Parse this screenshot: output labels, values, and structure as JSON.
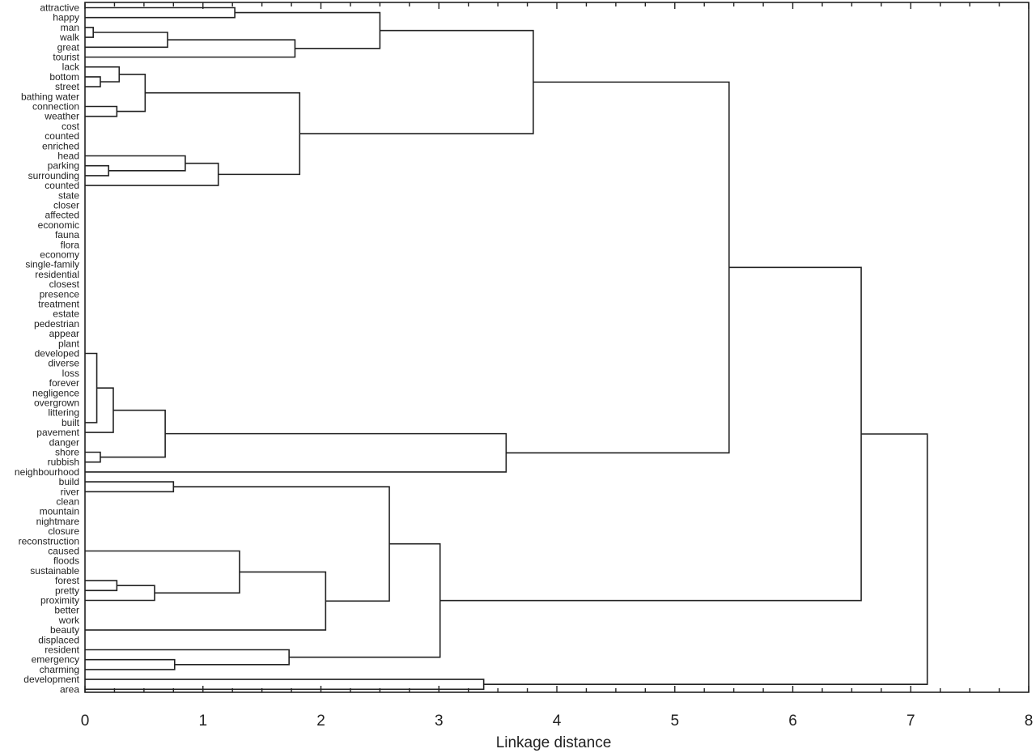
{
  "chart_data": {
    "type": "dendrogram",
    "xlabel": "Linkage distance",
    "xlim": [
      0,
      8
    ],
    "x_ticks": [
      0,
      1,
      2,
      3,
      4,
      5,
      6,
      7,
      8
    ],
    "leaves": [
      "attractive",
      "happy",
      "man",
      "walk",
      "great",
      "tourist",
      "lack",
      "bottom",
      "street",
      "bathing water",
      "connection",
      "weather",
      "cost",
      "counted",
      "enriched",
      "head",
      "parking",
      "surrounding",
      "counted",
      "state",
      "closer",
      "affected",
      "economic",
      "fauna",
      "flora",
      "economy",
      "single-family",
      "residential",
      "closest",
      "presence",
      "treatment",
      "estate",
      "pedestrian",
      "appear",
      "plant",
      "developed",
      "diverse",
      "loss",
      "forever",
      "negligence",
      "overgrown",
      "littering",
      "built",
      "pavement",
      "danger",
      "shore",
      "rubbish",
      "neighbourhood",
      "build",
      "river",
      "clean",
      "mountain",
      "nightmare",
      "closure",
      "reconstruction",
      "caused",
      "floods",
      "sustainable",
      "forest",
      "pretty",
      "proximity",
      "better",
      "work",
      "beauty",
      "displaced",
      "resident",
      "emergency",
      "charming",
      "development",
      "area"
    ],
    "links": [
      {
        "id": "A",
        "a": 0,
        "b": 1,
        "h": 1.27
      },
      {
        "id": "B",
        "a": 2,
        "b": 3,
        "h": 0.07
      },
      {
        "id": "C",
        "a": "B",
        "b": 4,
        "h": 0.7
      },
      {
        "id": "D",
        "a": "C",
        "b": 5,
        "h": 1.78
      },
      {
        "id": "E",
        "a": "A",
        "b": "D",
        "h": 2.5
      },
      {
        "id": "F",
        "a": 7,
        "b": 8,
        "h": 0.13
      },
      {
        "id": "G",
        "a": 6,
        "b": "F",
        "h": 0.29
      },
      {
        "id": "H",
        "a": 10,
        "b": 11,
        "h": 0.27
      },
      {
        "id": "I",
        "a": "G",
        "b": "H",
        "h": 0.51
      },
      {
        "id": "J",
        "a": 16,
        "b": 17,
        "h": 0.2
      },
      {
        "id": "K",
        "a": 15,
        "b": "J",
        "h": 0.85
      },
      {
        "id": "L",
        "a": "K",
        "b": 18,
        "h": 1.13
      },
      {
        "id": "M",
        "a": "I",
        "b": "L",
        "h": 1.82
      },
      {
        "id": "N",
        "a": "E",
        "b": "M",
        "h": 3.8
      },
      {
        "id": "O",
        "a": 35,
        "b": 42,
        "h": 0.1
      },
      {
        "id": "P",
        "a": "O",
        "b": 43,
        "h": 0.24
      },
      {
        "id": "Q",
        "a": 45,
        "b": 46,
        "h": 0.13
      },
      {
        "id": "R",
        "a": "P",
        "b": "Q",
        "h": 0.68
      },
      {
        "id": "S",
        "a": "R",
        "b": 47,
        "h": 3.57
      },
      {
        "id": "T",
        "a": "N",
        "b": "S",
        "h": 5.46
      },
      {
        "id": "U",
        "a": 48,
        "b": 49,
        "h": 0.75
      },
      {
        "id": "V",
        "a": 58,
        "b": 59,
        "h": 0.27
      },
      {
        "id": "W",
        "a": "V",
        "b": 60,
        "h": 0.59
      },
      {
        "id": "X",
        "a": 55,
        "b": "W",
        "h": 1.31
      },
      {
        "id": "Y",
        "a": "X",
        "b": 63,
        "h": 2.04
      },
      {
        "id": "Z",
        "a": "U",
        "b": "Y",
        "h": 2.58
      },
      {
        "id": "AA",
        "a": 66,
        "b": 67,
        "h": 0.76
      },
      {
        "id": "AB",
        "a": 65,
        "b": "AA",
        "h": 1.73
      },
      {
        "id": "AC",
        "a": "Z",
        "b": "AB",
        "h": 3.01
      },
      {
        "id": "AD",
        "a": "T",
        "b": "AC",
        "h": 6.58
      },
      {
        "id": "AE",
        "a": 68,
        "b": 69,
        "h": 3.38
      },
      {
        "id": "AF",
        "a": "AD",
        "b": "AE",
        "h": 7.14
      }
    ]
  }
}
